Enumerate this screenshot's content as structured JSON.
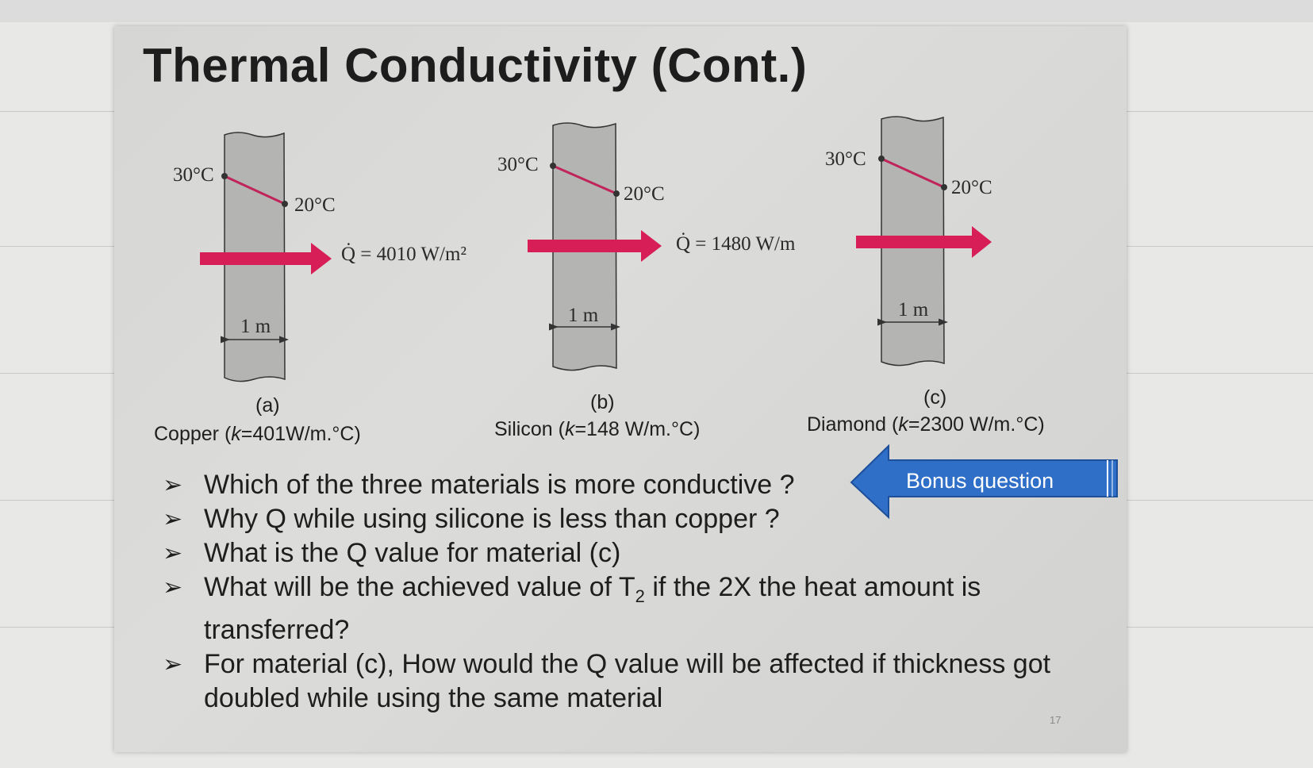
{
  "slide": {
    "title": "Thermal Conductivity (Cont.)",
    "page_number": "17"
  },
  "figures": [
    {
      "t1": "30°C",
      "t2": "20°C",
      "q": "Q̇ = 4010 W/m²",
      "width": "1 m",
      "letter": "(a)",
      "material": "Copper",
      "k": "k",
      "k_value": "=401W/m.°C"
    },
    {
      "t1": "30°C",
      "t2": "20°C",
      "q": "Q̇ = 1480 W/m",
      "width": "1 m",
      "letter": "(b)",
      "material": "Silicon",
      "k": "k",
      "k_value": "=148 W/m.°C"
    },
    {
      "t1": "30°C",
      "t2": "20°C",
      "width": "1 m",
      "letter": "(c)",
      "material": "Diamond",
      "k": "k",
      "k_value": "=2300 W/m.°C"
    }
  ],
  "bonus": {
    "label": "Bonus question",
    "color": "#2f6fc8"
  },
  "questions": [
    "Which of the three materials is more conductive ?",
    "Why Q while using silicone is less than copper ?",
    "What is the Q value for material (c)",
    "What will be the achieved value of T",
    "For material (c), How would the Q value will be affected if thickness got doubled while using the same material"
  ],
  "question4": {
    "subscript": "2",
    "rest": " if the 2X the heat amount is transferred?"
  },
  "colors": {
    "arrow": "#d81e57",
    "slab": "#b2b2b0",
    "gradient_line": "#c0245a"
  }
}
